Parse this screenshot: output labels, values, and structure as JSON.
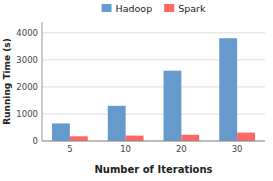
{
  "chart_data": {
    "type": "bar",
    "categories": [
      "5",
      "10",
      "20",
      "30"
    ],
    "series": [
      {
        "name": "Hadoop",
        "color": "#6699cc",
        "values": [
          650,
          1300,
          2600,
          3800
        ]
      },
      {
        "name": "Spark",
        "color": "#ff6666",
        "values": [
          175,
          200,
          230,
          310
        ]
      }
    ],
    "xlabel": "Number of Iterations",
    "ylabel": "Running Time (s)",
    "ylim": [
      0,
      4400
    ],
    "yticks": [
      0,
      1000,
      2000,
      3000,
      4000
    ],
    "grid": true,
    "legend": "top"
  }
}
